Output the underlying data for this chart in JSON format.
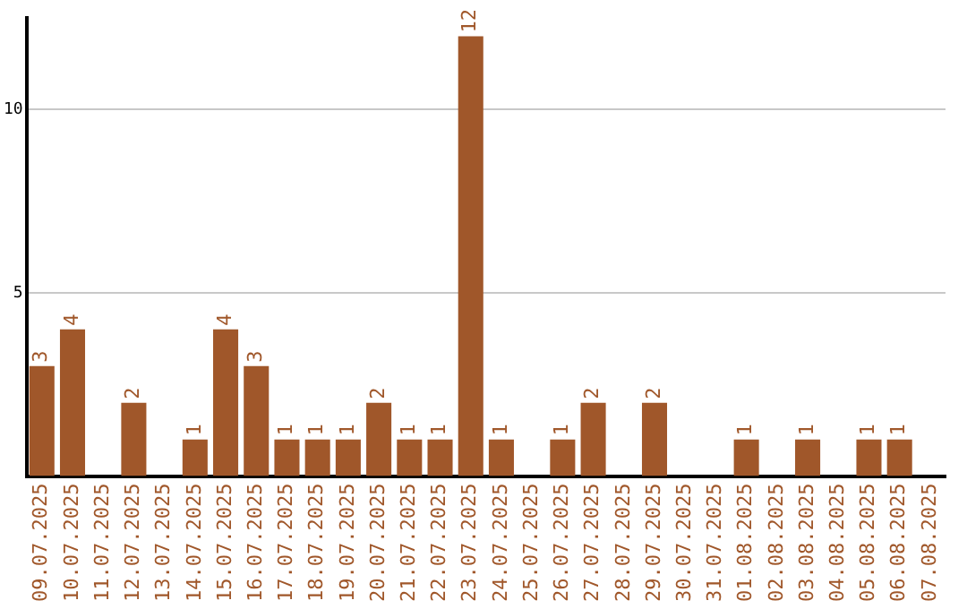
{
  "chart_data": {
    "type": "bar",
    "categories": [
      "09.07.2025",
      "10.07.2025",
      "11.07.2025",
      "12.07.2025",
      "13.07.2025",
      "14.07.2025",
      "15.07.2025",
      "16.07.2025",
      "17.07.2025",
      "18.07.2025",
      "19.07.2025",
      "20.07.2025",
      "21.07.2025",
      "22.07.2025",
      "23.07.2025",
      "24.07.2025",
      "25.07.2025",
      "26.07.2025",
      "27.07.2025",
      "28.07.2025",
      "29.07.2025",
      "30.07.2025",
      "31.07.2025",
      "01.08.2025",
      "02.08.2025",
      "03.08.2025",
      "04.08.2025",
      "05.08.2025",
      "06.08.2025",
      "07.08.2025"
    ],
    "values": [
      3,
      4,
      0,
      2,
      0,
      1,
      4,
      3,
      1,
      1,
      1,
      2,
      1,
      1,
      12,
      1,
      0,
      1,
      2,
      0,
      2,
      0,
      0,
      1,
      0,
      1,
      0,
      1,
      1,
      0
    ],
    "value_labels": [
      "3",
      "4",
      null,
      "2",
      null,
      "1",
      "4",
      "3",
      "1",
      "1",
      "1",
      "2",
      "1",
      "1",
      "12",
      "1",
      null,
      "1",
      "2",
      null,
      "2",
      null,
      null,
      "1",
      null,
      "1",
      null,
      "1",
      "1",
      null
    ],
    "color": "#a0572a",
    "ylim": [
      0,
      12.5
    ],
    "yticks": [
      5,
      10
    ],
    "grid": "y",
    "legend": false
  }
}
